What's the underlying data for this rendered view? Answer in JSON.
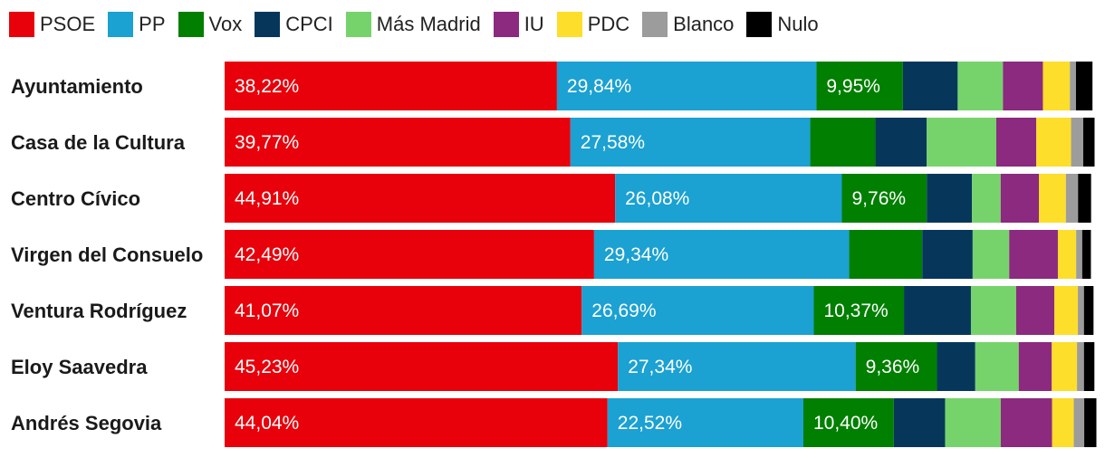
{
  "chart_data": {
    "type": "bar",
    "orientation": "horizontal",
    "stacked": true,
    "normalized_percent": true,
    "legend_position": "top-left",
    "series": [
      {
        "name": "PSOE",
        "color": "#e8000b",
        "values": [
          38.22,
          39.77,
          44.91,
          42.49,
          41.07,
          45.23,
          44.04
        ],
        "labels": [
          "38,22%",
          "39,77%",
          "44,91%",
          "42,49%",
          "41,07%",
          "45,23%",
          "44,04%"
        ]
      },
      {
        "name": "PP",
        "color": "#1ba1d2",
        "values": [
          29.84,
          27.58,
          26.08,
          29.34,
          26.69,
          27.34,
          22.52
        ],
        "labels": [
          "29,84%",
          "27,58%",
          "26,08%",
          "29,34%",
          "26,69%",
          "27,34%",
          "22,52%"
        ]
      },
      {
        "name": "Vox",
        "color": "#007f00",
        "values": [
          9.95,
          7.5,
          9.76,
          8.4,
          10.37,
          9.36,
          10.4
        ],
        "labels": [
          "9,95%",
          "",
          "9,76%",
          "",
          "10,37%",
          "9,36%",
          "10,40%"
        ]
      },
      {
        "name": "CPCI",
        "color": "#06375b",
        "values": [
          6.3,
          5.9,
          5.2,
          5.8,
          7.7,
          4.4,
          5.9
        ]
      },
      {
        "name": "Más Madrid",
        "color": "#76d36b",
        "values": [
          5.2,
          8.0,
          3.3,
          4.2,
          5.2,
          5.0,
          6.4
        ]
      },
      {
        "name": "IU",
        "color": "#8b2a7e",
        "values": [
          4.6,
          4.6,
          4.4,
          5.6,
          4.4,
          3.8,
          5.9
        ]
      },
      {
        "name": "PDC",
        "color": "#fdde2a",
        "values": [
          3.1,
          4.0,
          3.1,
          2.1,
          2.7,
          2.9,
          2.5
        ]
      },
      {
        "name": "Blanco",
        "color": "#9c9c9c",
        "values": [
          0.7,
          1.4,
          1.4,
          0.7,
          0.7,
          0.8,
          1.2
        ]
      },
      {
        "name": "Nulo",
        "color": "#000000",
        "values": [
          1.9,
          1.3,
          1.5,
          1.0,
          1.1,
          1.2,
          1.4
        ]
      }
    ],
    "categories": [
      "Ayuntamiento",
      "Casa de la Cultura",
      "Centro Cívico",
      "Virgen del Consuelo",
      "Ventura Rodríguez",
      "Eloy Saavedra",
      "Andrés Segovia"
    ],
    "title": "",
    "xlabel": "",
    "ylabel": "",
    "xlim": [
      0,
      100
    ]
  }
}
